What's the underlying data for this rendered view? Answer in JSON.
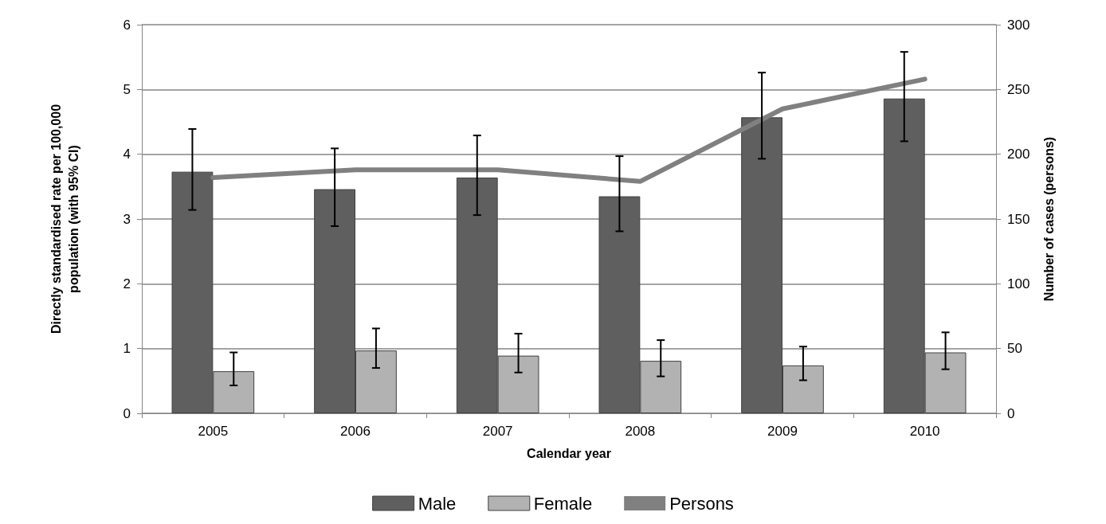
{
  "chart_data": {
    "type": "bar",
    "categories": [
      "2005",
      "2006",
      "2007",
      "2008",
      "2009",
      "2010"
    ],
    "xlabel": "Calendar year",
    "ylabel": "Directly standardised rate per 100,000\npopulation (with 95% CI)",
    "y2label": "Number of cases (persons)",
    "ylim": [
      0,
      6
    ],
    "yticks": [
      0,
      1,
      2,
      3,
      4,
      5,
      6
    ],
    "y2lim": [
      0,
      300
    ],
    "y2ticks": [
      0,
      50,
      100,
      150,
      200,
      250,
      300
    ],
    "grid": "y",
    "legend": "bottom",
    "marker": "none",
    "line_style": "solid",
    "series": [
      {
        "name": "Male",
        "color": "#5f5f5f",
        "values": [
          3.73,
          3.46,
          3.64,
          3.35,
          4.57,
          4.86
        ],
        "errors": [
          [
            3.14,
            4.39
          ],
          [
            2.89,
            4.09
          ],
          [
            3.06,
            4.29
          ],
          [
            2.81,
            3.97
          ],
          [
            3.93,
            5.26
          ],
          [
            4.2,
            5.58
          ]
        ]
      },
      {
        "name": "Female",
        "color": "#b2b2b2",
        "values": [
          0.65,
          0.97,
          0.89,
          0.81,
          0.74,
          0.94
        ],
        "errors": [
          [
            0.43,
            0.94
          ],
          [
            0.7,
            1.31
          ],
          [
            0.63,
            1.23
          ],
          [
            0.57,
            1.13
          ],
          [
            0.51,
            1.03
          ],
          [
            0.68,
            1.25
          ]
        ]
      },
      {
        "name": "Persons",
        "type": "line",
        "axis": "y2",
        "color": "#808080",
        "values": [
          182,
          188,
          188,
          179,
          235,
          258
        ]
      }
    ]
  }
}
